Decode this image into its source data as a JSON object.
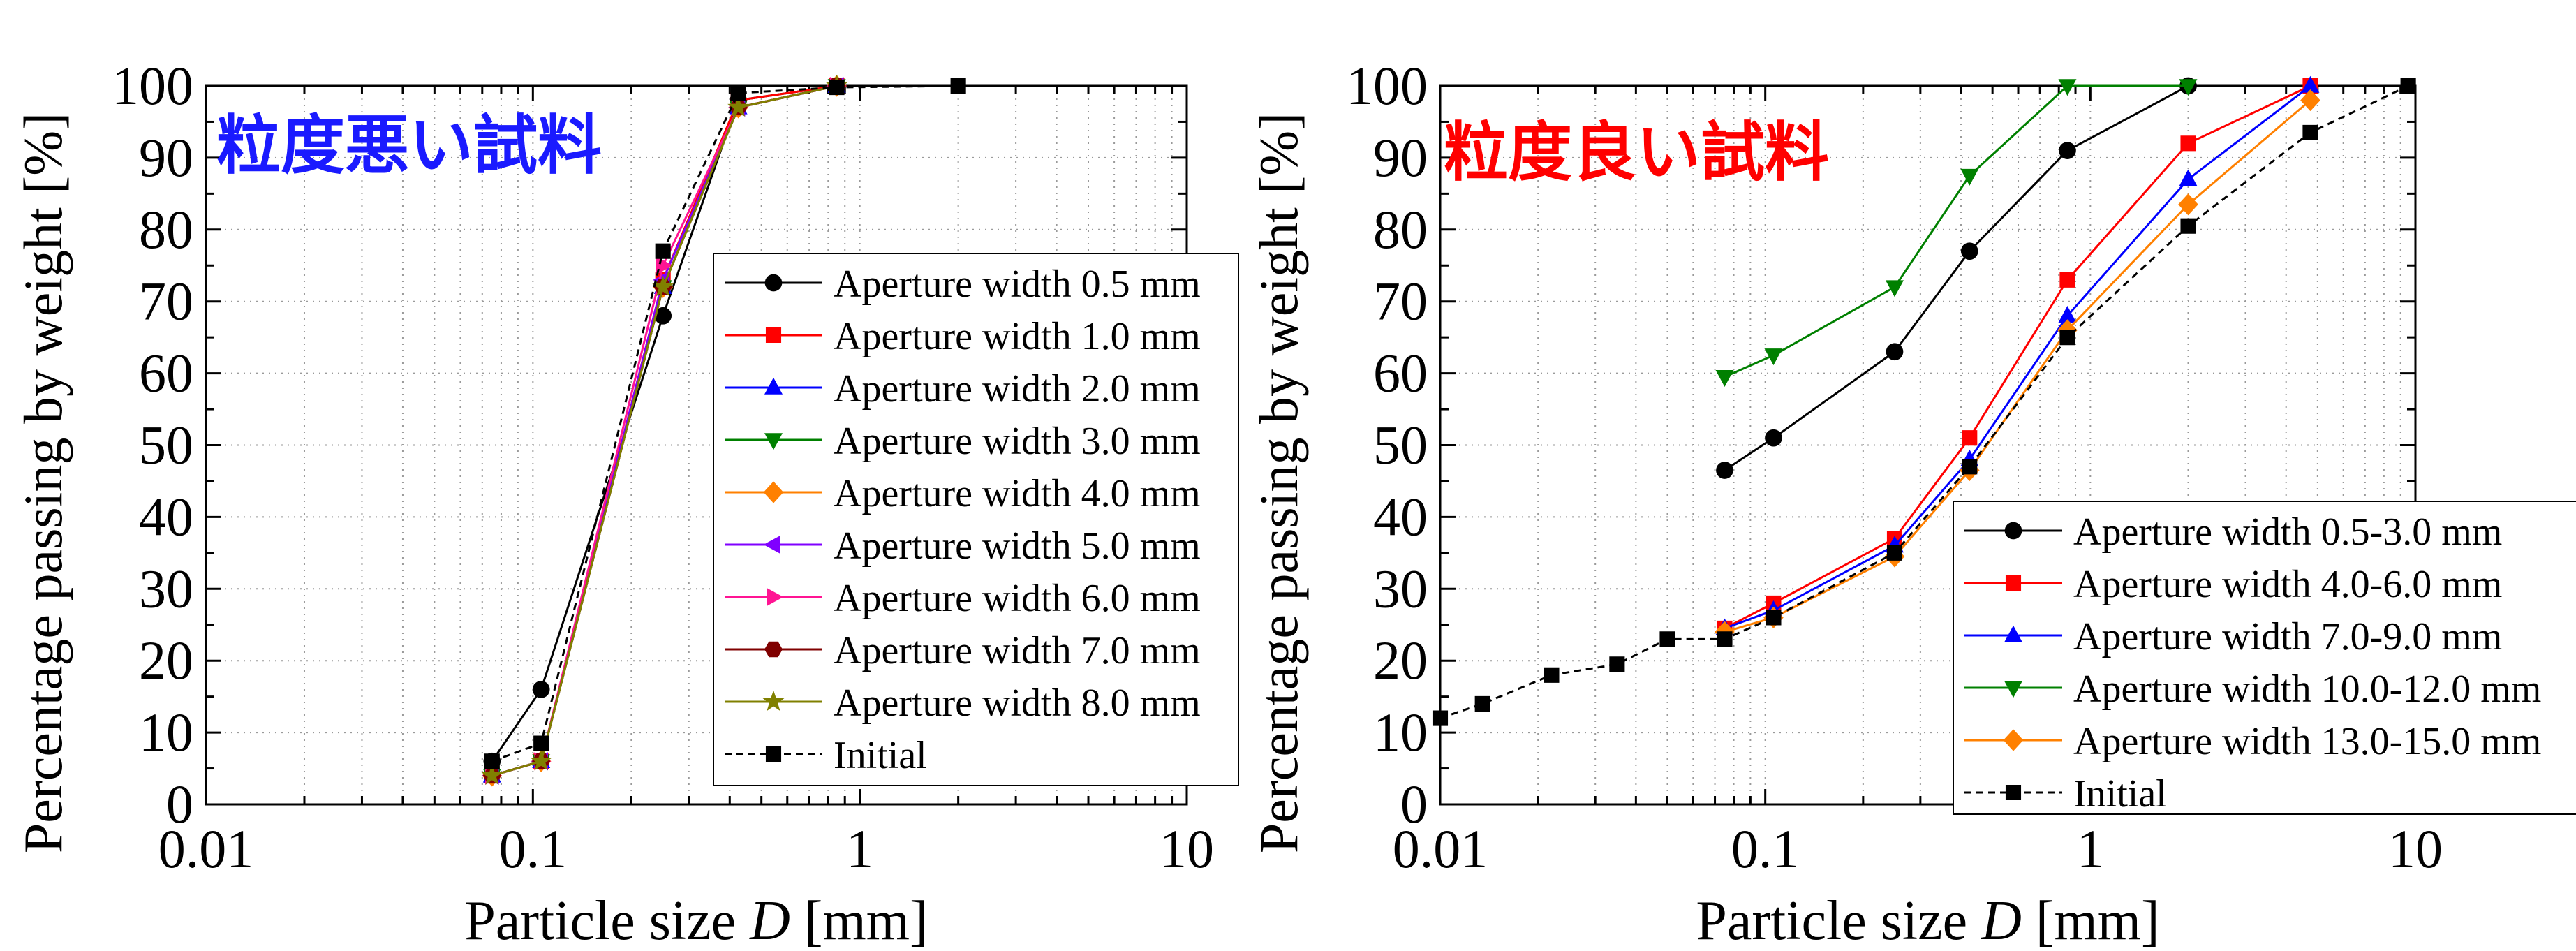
{
  "chart_data": [
    {
      "type": "line",
      "annotation": "粒度悪い試料",
      "annotation_color": "#1a1aff",
      "xlabel_prefix": "Particle size ",
      "xlabel_var": "D",
      "xlabel_suffix": " [mm]",
      "ylabel": "Percentage passing by weight [%]",
      "xscale": "log",
      "xlim": [
        0.01,
        10
      ],
      "ylim": [
        0,
        100
      ],
      "grid": true,
      "legend_position": "center-right",
      "xticks": [
        {
          "value": 0.01,
          "label": "0.01"
        },
        {
          "value": 0.1,
          "label": "0.1"
        },
        {
          "value": 1,
          "label": "1"
        },
        {
          "value": 10,
          "label": "10"
        }
      ],
      "yticks": [
        {
          "value": 0,
          "label": "0"
        },
        {
          "value": 10,
          "label": "10"
        },
        {
          "value": 20,
          "label": "20"
        },
        {
          "value": 30,
          "label": "30"
        },
        {
          "value": 40,
          "label": "40"
        },
        {
          "value": 50,
          "label": "50"
        },
        {
          "value": 60,
          "label": "60"
        },
        {
          "value": 70,
          "label": "70"
        },
        {
          "value": 80,
          "label": "80"
        },
        {
          "value": 90,
          "label": "90"
        },
        {
          "value": 100,
          "label": "100"
        }
      ],
      "series": [
        {
          "name": "Aperture width 0.5 mm",
          "color": "#000000",
          "marker": "circle",
          "dashed": false,
          "x": [
            0.075,
            0.106,
            0.25,
            0.425,
            0.85
          ],
          "y": [
            6,
            16,
            68,
            98,
            100
          ]
        },
        {
          "name": "Aperture width 1.0 mm",
          "color": "#ff0000",
          "marker": "square",
          "dashed": false,
          "x": [
            0.075,
            0.106,
            0.25,
            0.425,
            0.85
          ],
          "y": [
            4,
            6,
            73,
            98,
            100
          ]
        },
        {
          "name": "Aperture width 2.0 mm",
          "color": "#0000ff",
          "marker": "triangle-up",
          "dashed": false,
          "x": [
            0.075,
            0.106,
            0.25,
            0.425,
            0.85
          ],
          "y": [
            4,
            6,
            72,
            97,
            100
          ]
        },
        {
          "name": "Aperture width 3.0 mm",
          "color": "#008000",
          "marker": "triangle-down",
          "dashed": false,
          "x": [
            0.075,
            0.106,
            0.25,
            0.425,
            0.85
          ],
          "y": [
            4,
            6,
            72,
            97,
            100
          ]
        },
        {
          "name": "Aperture width 4.0 mm",
          "color": "#ff8000",
          "marker": "diamond",
          "dashed": false,
          "x": [
            0.075,
            0.106,
            0.25,
            0.425,
            0.85
          ],
          "y": [
            4,
            6,
            72,
            97,
            100
          ]
        },
        {
          "name": "Aperture width 5.0 mm",
          "color": "#8000ff",
          "marker": "triangle-left",
          "dashed": false,
          "x": [
            0.075,
            0.106,
            0.25,
            0.425,
            0.85
          ],
          "y": [
            4,
            6,
            73,
            97,
            100
          ]
        },
        {
          "name": "Aperture width 6.0 mm",
          "color": "#ff1493",
          "marker": "triangle-right",
          "dashed": false,
          "x": [
            0.075,
            0.106,
            0.25,
            0.425,
            0.85
          ],
          "y": [
            4,
            6,
            75,
            97,
            100
          ]
        },
        {
          "name": "Aperture width 7.0 mm",
          "color": "#800000",
          "marker": "hexagon",
          "dashed": false,
          "x": [
            0.075,
            0.106,
            0.25,
            0.425,
            0.85
          ],
          "y": [
            4,
            6,
            72,
            97,
            100
          ]
        },
        {
          "name": "Aperture width 8.0 mm",
          "color": "#808000",
          "marker": "star",
          "dashed": false,
          "x": [
            0.075,
            0.106,
            0.25,
            0.425,
            0.85
          ],
          "y": [
            4,
            6,
            72,
            97,
            100
          ]
        },
        {
          "name": "Initial",
          "color": "#000000",
          "marker": "square",
          "dashed": true,
          "x": [
            0.075,
            0.106,
            0.25,
            0.425,
            0.85,
            2.0
          ],
          "y": [
            6,
            8.5,
            77,
            99,
            99.8,
            100
          ]
        }
      ]
    },
    {
      "type": "line",
      "annotation": "粒度良い試料",
      "annotation_color": "#ff0000",
      "xlabel_prefix": "Particle size ",
      "xlabel_var": "D",
      "xlabel_suffix": " [mm]",
      "ylabel": "Percentage passing by weight [%]",
      "xscale": "log",
      "xlim": [
        0.01,
        10
      ],
      "ylim": [
        0,
        100
      ],
      "grid": true,
      "legend_position": "bottom-right",
      "xticks": [
        {
          "value": 0.01,
          "label": "0.01"
        },
        {
          "value": 0.1,
          "label": "0.1"
        },
        {
          "value": 1,
          "label": "1"
        },
        {
          "value": 10,
          "label": "10"
        }
      ],
      "yticks": [
        {
          "value": 0,
          "label": "0"
        },
        {
          "value": 10,
          "label": "10"
        },
        {
          "value": 20,
          "label": "20"
        },
        {
          "value": 30,
          "label": "30"
        },
        {
          "value": 40,
          "label": "40"
        },
        {
          "value": 50,
          "label": "50"
        },
        {
          "value": 60,
          "label": "60"
        },
        {
          "value": 70,
          "label": "70"
        },
        {
          "value": 80,
          "label": "80"
        },
        {
          "value": 90,
          "label": "90"
        },
        {
          "value": 100,
          "label": "100"
        }
      ],
      "series": [
        {
          "name": "Aperture width 0.5-3.0 mm",
          "color": "#000000",
          "marker": "circle",
          "dashed": false,
          "x": [
            0.075,
            0.106,
            0.25,
            0.425,
            0.85,
            2.0
          ],
          "y": [
            46.5,
            51,
            63,
            77,
            91,
            100
          ]
        },
        {
          "name": "Aperture width 4.0-6.0 mm",
          "color": "#ff0000",
          "marker": "square",
          "dashed": false,
          "x": [
            0.075,
            0.106,
            0.25,
            0.425,
            0.85,
            2.0,
            4.75
          ],
          "y": [
            24.5,
            28,
            37,
            51,
            73,
            92,
            100
          ]
        },
        {
          "name": "Aperture width 7.0-9.0 mm",
          "color": "#0000ff",
          "marker": "triangle-up",
          "dashed": false,
          "x": [
            0.075,
            0.106,
            0.25,
            0.425,
            0.85,
            2.0,
            4.75
          ],
          "y": [
            24.5,
            27,
            36,
            48,
            68,
            87,
            100
          ]
        },
        {
          "name": "Aperture width 10.0-12.0 mm",
          "color": "#008000",
          "marker": "triangle-down",
          "dashed": false,
          "x": [
            0.075,
            0.106,
            0.25,
            0.425,
            0.85,
            2.0
          ],
          "y": [
            59.5,
            62.5,
            72,
            87.5,
            100,
            100
          ]
        },
        {
          "name": "Aperture width 13.0-15.0 mm",
          "color": "#ff8000",
          "marker": "diamond",
          "dashed": false,
          "x": [
            0.075,
            0.106,
            0.25,
            0.425,
            0.85,
            2.0,
            4.75
          ],
          "y": [
            24,
            26,
            34.5,
            46.5,
            66,
            83.5,
            98
          ]
        },
        {
          "name": "Initial",
          "color": "#000000",
          "marker": "square",
          "dashed": true,
          "x": [
            0.01,
            0.0135,
            0.022,
            0.035,
            0.05,
            0.075,
            0.106,
            0.25,
            0.425,
            0.85,
            2.0,
            4.75,
            9.5
          ],
          "y": [
            12,
            14,
            18,
            19.5,
            23,
            23,
            26,
            35,
            47,
            65,
            80.5,
            93.5,
            100
          ]
        }
      ]
    }
  ]
}
